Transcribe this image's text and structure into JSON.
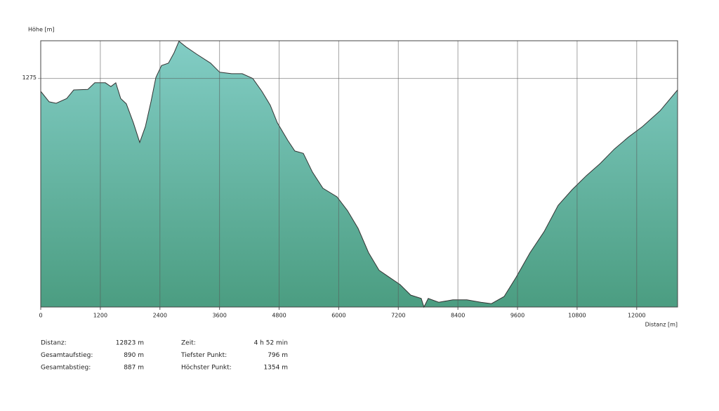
{
  "chart_data": {
    "type": "area",
    "y_label": "Höhe [m]",
    "x_label": "Distanz [m]",
    "x": [
      0,
      170,
      311,
      523,
      664,
      947,
      1088,
      1300,
      1413,
      1512,
      1611,
      1724,
      1866,
      1993,
      2106,
      2219,
      2318,
      2431,
      2572,
      2686,
      2784,
      2926,
      3138,
      3421,
      3604,
      3845,
      4057,
      4269,
      4453,
      4622,
      4764,
      4976,
      5117,
      5287,
      5470,
      5682,
      5965,
      6177,
      6389,
      6601,
      6813,
      7025,
      7237,
      7449,
      7661,
      7717,
      7802,
      8014,
      8297,
      8580,
      8862,
      9075,
      9329,
      9570,
      9853,
      10136,
      10418,
      10701,
      10984,
      11267,
      11549,
      11832,
      12115,
      12469,
      12823
    ],
    "values": [
      1248,
      1226,
      1223,
      1233,
      1251,
      1252,
      1266,
      1266,
      1258,
      1266,
      1233,
      1222,
      1182,
      1141,
      1174,
      1226,
      1277,
      1302,
      1307,
      1329,
      1353,
      1341,
      1326,
      1307,
      1288,
      1285,
      1285,
      1275,
      1248,
      1219,
      1182,
      1145,
      1123,
      1118,
      1079,
      1045,
      1027,
      998,
      961,
      910,
      873,
      858,
      843,
      821,
      814,
      796,
      814,
      806,
      811,
      811,
      806,
      803,
      818,
      858,
      910,
      954,
      1009,
      1042,
      1071,
      1097,
      1127,
      1152,
      1174,
      1207,
      1251
    ],
    "xlim": [
      0,
      12823
    ],
    "ylim": [
      796,
      1354
    ],
    "xticks": [
      0,
      1200,
      2400,
      3600,
      4800,
      6000,
      7200,
      8400,
      9600,
      10800,
      12000
    ],
    "yticks": [
      1275
    ],
    "grid": true,
    "color": "#333333",
    "gradient": [
      "#82cdc5",
      "#4b9d81"
    ]
  },
  "stats": [
    {
      "label": "Distanz:",
      "value": "12823 m"
    },
    {
      "label": "Gesamtaufstieg:",
      "value": "890 m"
    },
    {
      "label": "Gesamtabstieg:",
      "value": "887 m"
    },
    {
      "label": "Zeit:",
      "value": "4 h 52 min"
    },
    {
      "label": "Tiefster Punkt:",
      "value": "796 m"
    },
    {
      "label": "Höchster Punkt:",
      "value": "1354 m"
    }
  ]
}
